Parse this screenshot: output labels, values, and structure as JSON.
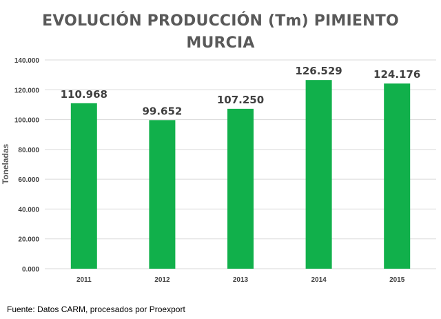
{
  "chart_data": {
    "type": "bar",
    "title_line1": "EVOLUCIÓN PRODUCCIÓN (Tm) PIMIENTO",
    "title_line2": "MURCIA",
    "xlabel": "",
    "ylabel": "Toneladas",
    "categories": [
      "2011",
      "2012",
      "2013",
      "2014",
      "2015"
    ],
    "values": [
      110968,
      99652,
      107250,
      126529,
      124176
    ],
    "data_labels": [
      "110.968",
      "99.652",
      "107.250",
      "126.529",
      "124.176"
    ],
    "yticks": [
      0,
      20000,
      40000,
      60000,
      80000,
      100000,
      120000,
      140000
    ],
    "ytick_labels": [
      "0.000",
      "20.000",
      "40.000",
      "60.000",
      "80.000",
      "100.000",
      "120.000",
      "140.000"
    ],
    "ylim": [
      0,
      140000
    ],
    "grid": true,
    "legend": "none",
    "bar_color": "#11B04B",
    "grid_color": "#D9D9D9"
  },
  "source": "Fuente: Datos CARM, procesados por Proexport"
}
